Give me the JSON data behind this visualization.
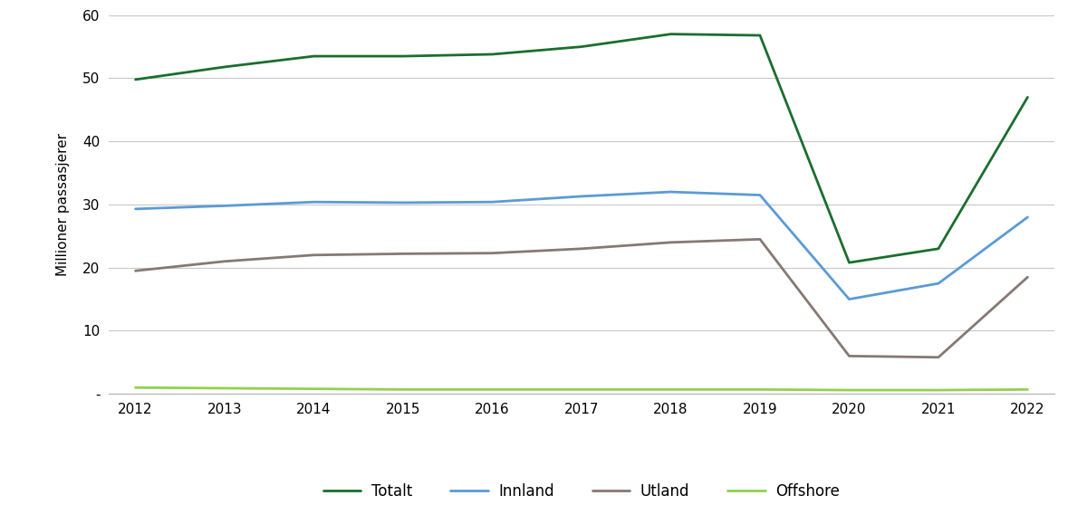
{
  "years": [
    2012,
    2013,
    2014,
    2015,
    2016,
    2017,
    2018,
    2019,
    2020,
    2021,
    2022
  ],
  "totalt": [
    49.8,
    51.8,
    53.5,
    53.5,
    53.8,
    55.0,
    57.0,
    56.8,
    20.8,
    23.0,
    47.0
  ],
  "innland": [
    29.3,
    29.8,
    30.4,
    30.3,
    30.4,
    31.3,
    32.0,
    31.5,
    15.0,
    17.5,
    28.0
  ],
  "utland": [
    19.5,
    21.0,
    22.0,
    22.2,
    22.3,
    23.0,
    24.0,
    24.5,
    6.0,
    5.8,
    18.5
  ],
  "offshore": [
    1.0,
    0.9,
    0.8,
    0.7,
    0.7,
    0.7,
    0.7,
    0.7,
    0.6,
    0.6,
    0.7
  ],
  "color_totalt": "#1a6e2e",
  "color_innland": "#5b9bd5",
  "color_utland": "#857974",
  "color_offshore": "#92d050",
  "ylabel": "Millioner passasjerer",
  "ylim_min": 0,
  "ylim_max": 60,
  "yticks": [
    0,
    10,
    20,
    30,
    40,
    50,
    60
  ],
  "ytick_labels": [
    "-",
    "10",
    "20",
    "30",
    "40",
    "50",
    "60"
  ],
  "background_color": "#ffffff",
  "line_width": 2.0,
  "legend_labels": [
    "Totalt",
    "Innland",
    "Utland",
    "Offshore"
  ],
  "grid_color": "#c8c8c8",
  "spine_color": "#b0b0b0",
  "tick_fontsize": 11,
  "ylabel_fontsize": 11,
  "legend_fontsize": 12
}
